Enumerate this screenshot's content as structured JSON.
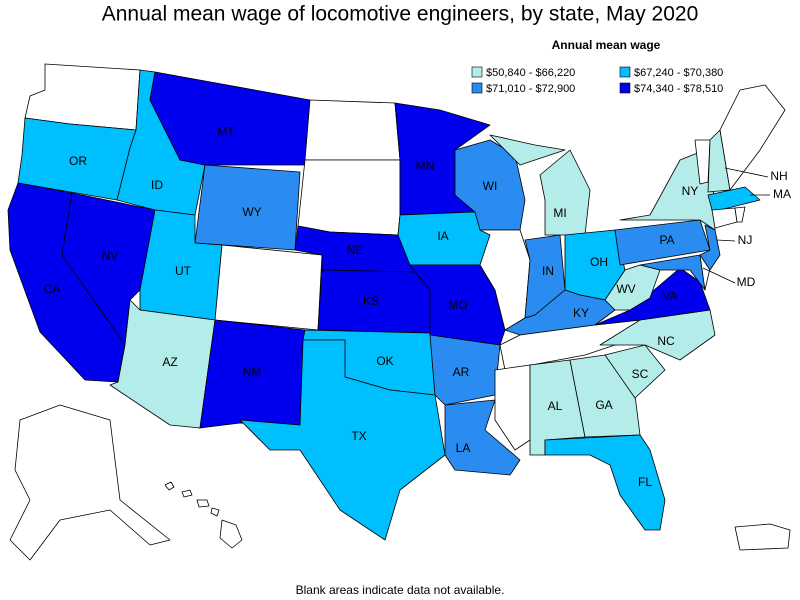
{
  "title": "Annual mean wage of locomotive engineers, by state, May 2020",
  "legend": {
    "title": "Annual mean wage",
    "bins": [
      {
        "label": "$50,840 - $66,220",
        "color": "#b3ece8",
        "states": [
          "AZ",
          "AL",
          "GA",
          "SC",
          "NC",
          "NY",
          "MI",
          "WV",
          "NH"
        ]
      },
      {
        "label": "$67,240 - $70,380",
        "color": "#00bfff",
        "states": [
          "OR",
          "ID",
          "UT",
          "IA",
          "OH",
          "TX",
          "OK",
          "FL",
          "MA"
        ]
      },
      {
        "label": "$71,010 - $72,900",
        "color": "#2a8cf0",
        "states": [
          "WY",
          "WI",
          "IN",
          "KY",
          "PA",
          "AR",
          "LA",
          "NJ",
          "MD"
        ]
      },
      {
        "label": "$74,340 - $78,510",
        "color": "#0000ee",
        "states": [
          "MT",
          "MN",
          "NV",
          "CA",
          "NE",
          "KS",
          "MO",
          "NM",
          "VA"
        ]
      }
    ]
  },
  "note": "Blank areas indicate data not available."
}
